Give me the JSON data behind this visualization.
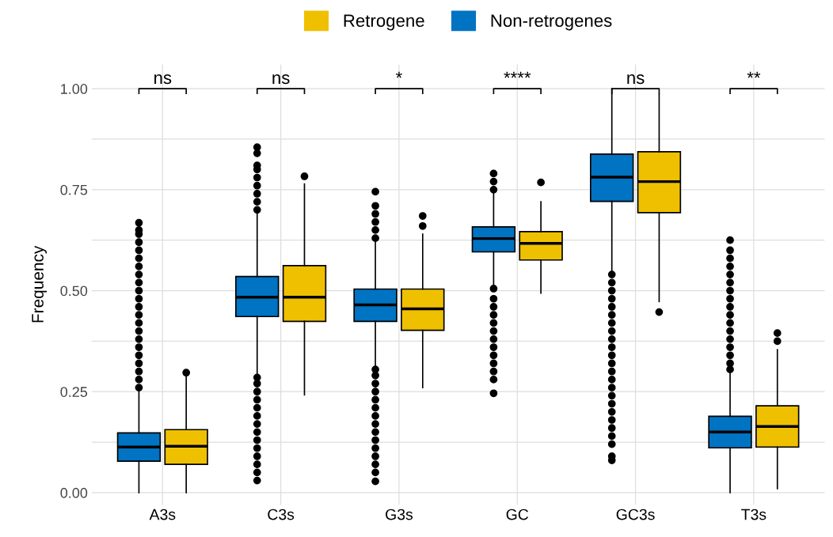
{
  "chart_data": {
    "type": "box",
    "ylabel": "Frequency",
    "categories": [
      "A3s",
      "C3s",
      "G3s",
      "GC",
      "GC3s",
      "T3s"
    ],
    "ylim": [
      -0.03,
      1.06
    ],
    "yticks": [
      {
        "value": 0,
        "label": "0.00"
      },
      {
        "value": 0.125,
        "label": null
      },
      {
        "value": 0.25,
        "label": "0.25"
      },
      {
        "value": 0.375,
        "label": null
      },
      {
        "value": 0.5,
        "label": "0.50"
      },
      {
        "value": 0.625,
        "label": null
      },
      {
        "value": 0.75,
        "label": "0.75"
      },
      {
        "value": 0.875,
        "label": null
      },
      {
        "value": 1,
        "label": "1.00"
      }
    ],
    "grid": true,
    "legend": "top",
    "series": [
      {
        "name": "Retrogene",
        "color": "#efc000",
        "boxes": [
          {
            "low": 0,
            "q1": 0.07,
            "median": 0.115,
            "q3": 0.156,
            "high": 0.289,
            "outliers": [
              0.297
            ]
          },
          {
            "low": 0.242,
            "q1": 0.424,
            "median": 0.484,
            "q3": 0.562,
            "high": 0.764,
            "outliers": [
              0.783
            ]
          },
          {
            "low": 0.26,
            "q1": 0.402,
            "median": 0.455,
            "q3": 0.504,
            "high": 0.64,
            "outliers": [
              0.66,
              0.685
            ]
          },
          {
            "low": 0.494,
            "q1": 0.576,
            "median": 0.617,
            "q3": 0.646,
            "high": 0.72,
            "outliers": [
              0.768
            ]
          },
          {
            "low": 0.473,
            "q1": 0.693,
            "median": 0.77,
            "q3": 0.844,
            "high": 0.986,
            "outliers": [
              0.447
            ]
          },
          {
            "low": 0.01,
            "q1": 0.113,
            "median": 0.164,
            "q3": 0.215,
            "high": 0.354,
            "outliers": [
              0.375,
              0.395
            ]
          }
        ]
      },
      {
        "name": "Non-retrogenes",
        "color": "#0073c2",
        "boxes": [
          {
            "low": 0,
            "q1": 0.078,
            "median": 0.113,
            "q3": 0.148,
            "high": 0.252,
            "outliers": [
              0.26,
              0.28,
              0.3,
              0.32,
              0.34,
              0.36,
              0.38,
              0.4,
              0.42,
              0.44,
              0.46,
              0.48,
              0.5,
              0.52,
              0.54,
              0.56,
              0.58,
              0.6,
              0.62,
              0.64,
              0.65,
              0.668
            ]
          },
          {
            "low": 0.291,
            "q1": 0.436,
            "median": 0.484,
            "q3": 0.535,
            "high": 0.693,
            "outliers": [
              0.03,
              0.05,
              0.07,
              0.09,
              0.11,
              0.13,
              0.15,
              0.17,
              0.19,
              0.21,
              0.23,
              0.25,
              0.27,
              0.285,
              0.7,
              0.72,
              0.74,
              0.76,
              0.78,
              0.8,
              0.81,
              0.84,
              0.855
            ]
          },
          {
            "low": 0.31,
            "q1": 0.424,
            "median": 0.465,
            "q3": 0.504,
            "high": 0.62,
            "outliers": [
              0.028,
              0.05,
              0.07,
              0.09,
              0.11,
              0.13,
              0.15,
              0.17,
              0.19,
              0.21,
              0.23,
              0.25,
              0.27,
              0.29,
              0.305,
              0.63,
              0.65,
              0.67,
              0.69,
              0.71,
              0.745
            ]
          },
          {
            "low": 0.51,
            "q1": 0.596,
            "median": 0.629,
            "q3": 0.658,
            "high": 0.745,
            "outliers": [
              0.246,
              0.28,
              0.3,
              0.32,
              0.34,
              0.36,
              0.38,
              0.4,
              0.42,
              0.44,
              0.46,
              0.48,
              0.505,
              0.75,
              0.77,
              0.79
            ]
          },
          {
            "low": 0.54,
            "q1": 0.721,
            "median": 0.781,
            "q3": 0.838,
            "high": 1.0,
            "outliers": [
              0.08,
              0.09,
              0.12,
              0.14,
              0.16,
              0.18,
              0.2,
              0.22,
              0.24,
              0.26,
              0.28,
              0.3,
              0.32,
              0.34,
              0.36,
              0.38,
              0.4,
              0.42,
              0.44,
              0.46,
              0.48,
              0.5,
              0.52,
              0.54
            ]
          },
          {
            "low": 0,
            "q1": 0.111,
            "median": 0.15,
            "q3": 0.189,
            "high": 0.3,
            "outliers": [
              0.305,
              0.32,
              0.34,
              0.36,
              0.38,
              0.4,
              0.42,
              0.44,
              0.46,
              0.48,
              0.5,
              0.52,
              0.54,
              0.56,
              0.58,
              0.6,
              0.625
            ]
          }
        ]
      }
    ],
    "annotations": [
      "ns",
      "ns",
      "*",
      "****",
      "ns",
      "**"
    ]
  }
}
